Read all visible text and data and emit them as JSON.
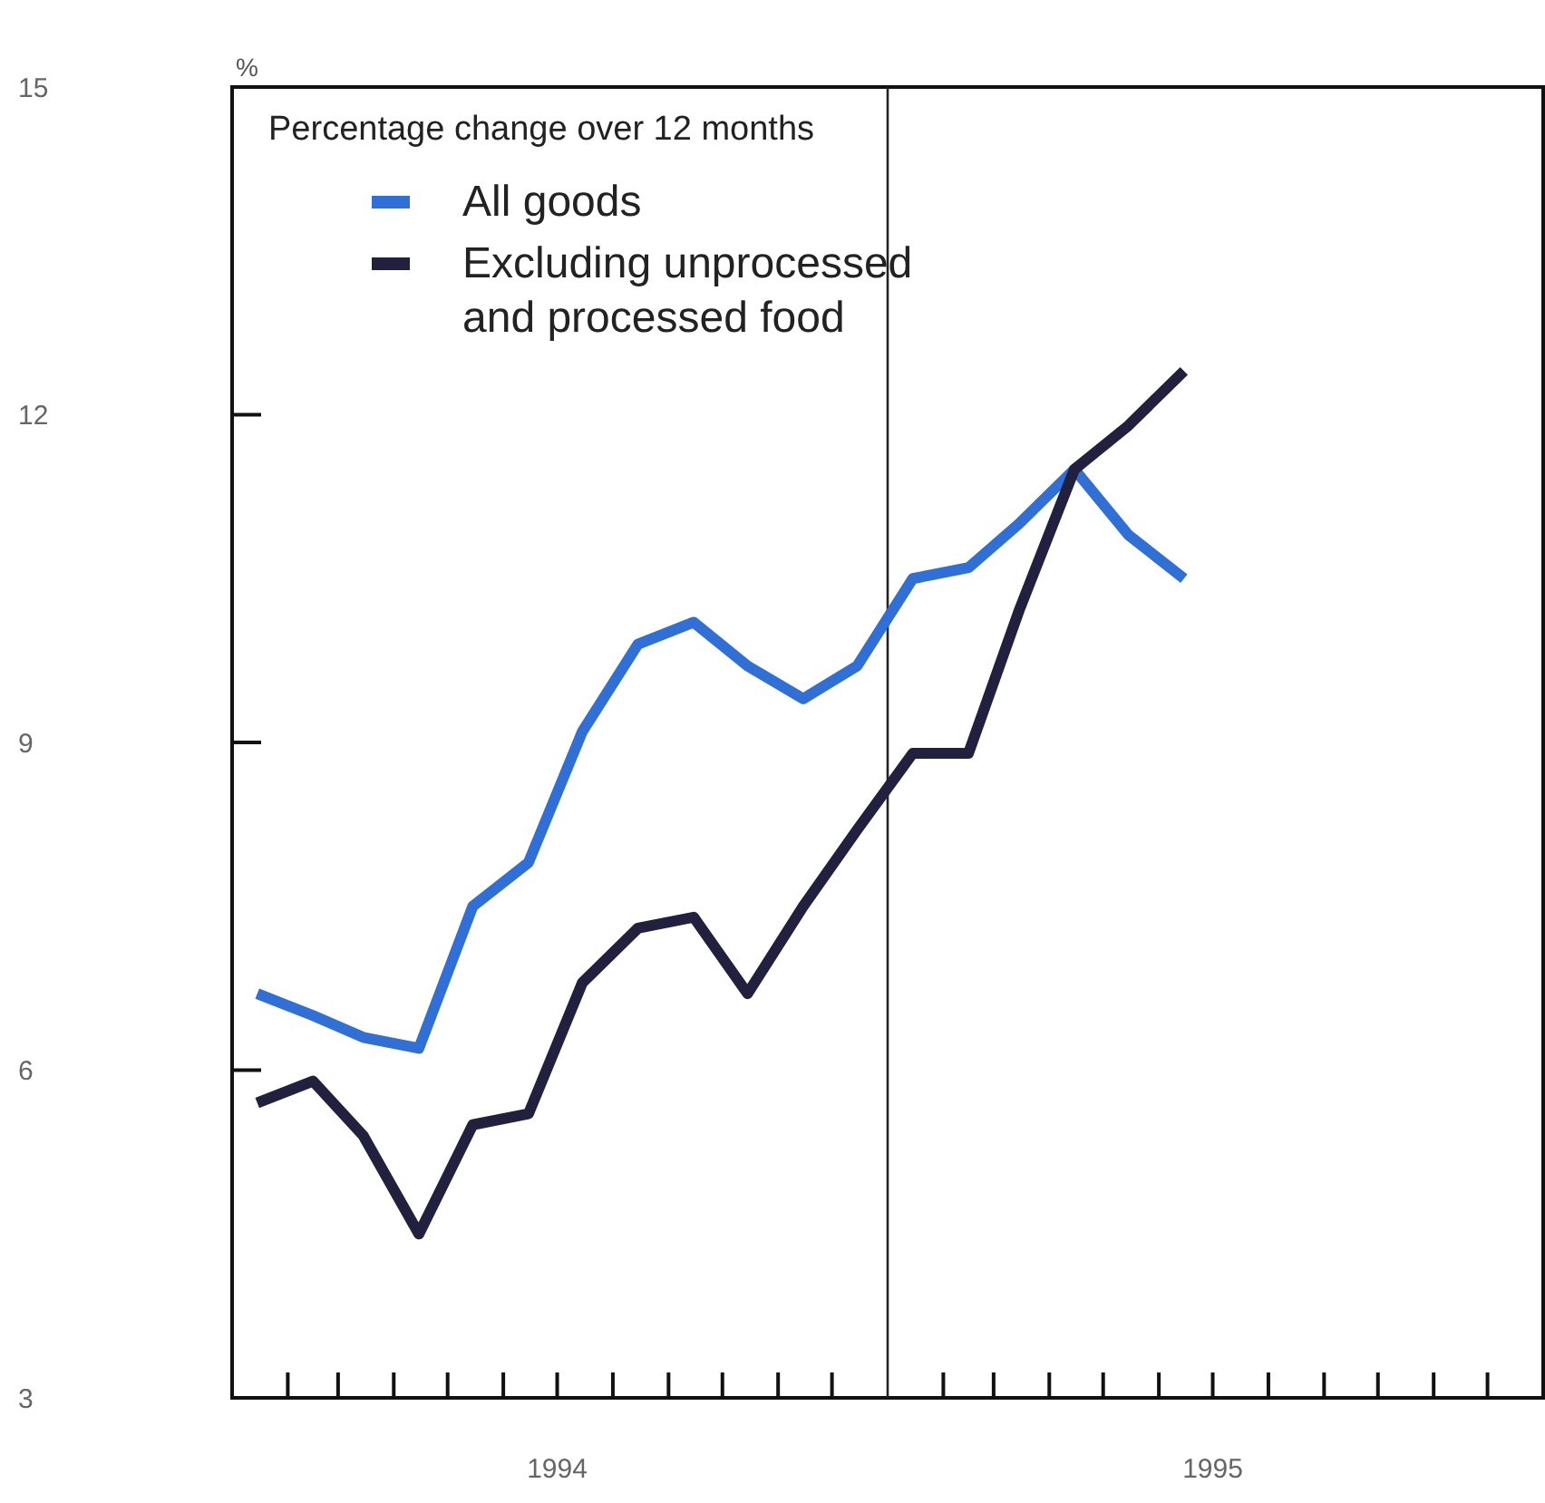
{
  "chart_data": {
    "type": "line",
    "ylabel": "%",
    "legend_title": "Percentage change over 12 months",
    "legend": "top left",
    "grid": false,
    "marker": "none",
    "line_style": "solid",
    "x": [
      "1994-01-15",
      "1994-02-15",
      "1994-03-15",
      "1994-04-15",
      "1994-05-15",
      "1994-06-15",
      "1994-07-15",
      "1994-08-15",
      "1994-09-15",
      "1994-10-15",
      "1994-11-15",
      "1994-12-15",
      "1995-01-15",
      "1995-02-15",
      "1995-03-15",
      "1995-04-15",
      "1995-05-15",
      "1995-06-15"
    ],
    "series": [
      {
        "name": "All goods",
        "color": "#2f6fd6",
        "values": [
          6.7,
          6.5,
          6.3,
          6.2,
          7.5,
          7.9,
          9.1,
          9.9,
          10.1,
          9.7,
          9.4,
          9.7,
          10.5,
          10.6,
          11.0,
          11.5,
          10.9,
          10.5
        ]
      },
      {
        "name": "Excluding unprocessed and processed food",
        "color": "#22203f",
        "values": [
          5.7,
          5.9,
          5.4,
          4.5,
          5.5,
          5.6,
          6.8,
          7.3,
          7.4,
          6.7,
          7.5,
          8.2,
          8.9,
          8.9,
          10.2,
          11.5,
          11.9,
          12.4
        ]
      }
    ],
    "xlim": [
      "1994-01-01",
      "1996-01-01"
    ],
    "xticks": [
      {
        "value": "1994-02-01",
        "label": null
      },
      {
        "value": "1994-03-01",
        "label": null
      },
      {
        "value": "1994-04-01",
        "label": null
      },
      {
        "value": "1994-05-01",
        "label": null
      },
      {
        "value": "1994-06-01",
        "label": null
      },
      {
        "value": "1994-07-01",
        "label": "1994"
      },
      {
        "value": "1994-08-01",
        "label": null
      },
      {
        "value": "1994-09-01",
        "label": null
      },
      {
        "value": "1994-10-01",
        "label": null
      },
      {
        "value": "1994-11-01",
        "label": null
      },
      {
        "value": "1994-12-01",
        "label": null
      },
      {
        "value": "1995-02-01",
        "label": null
      },
      {
        "value": "1995-03-01",
        "label": null
      },
      {
        "value": "1995-04-01",
        "label": null
      },
      {
        "value": "1995-05-01",
        "label": null
      },
      {
        "value": "1995-06-01",
        "label": null
      },
      {
        "value": "1995-07-01",
        "label": "1995"
      },
      {
        "value": "1995-08-01",
        "label": null
      },
      {
        "value": "1995-09-01",
        "label": null
      },
      {
        "value": "1995-10-01",
        "label": null
      },
      {
        "value": "1995-11-01",
        "label": null
      },
      {
        "value": "1995-12-01",
        "label": null
      }
    ],
    "ylim": [
      3,
      15
    ],
    "yticks": [
      3,
      6,
      9,
      12,
      15
    ],
    "ref_lines": [
      {
        "axis": "x",
        "value": "1995-01-01",
        "color": "#222222"
      }
    ]
  }
}
